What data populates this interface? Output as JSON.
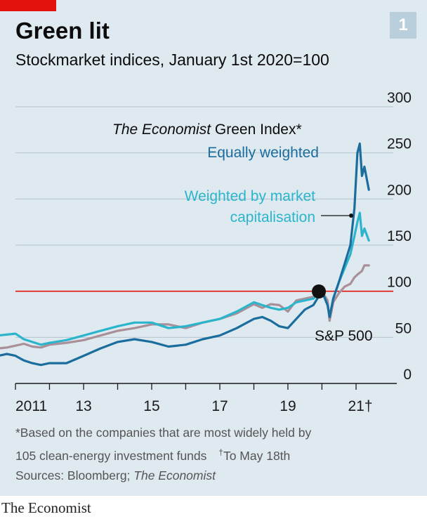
{
  "header": {
    "title": "Green lit",
    "subtitle": "Stockmarket indices, January 1st 2020=100",
    "chart_number": "1"
  },
  "colors": {
    "background": "#dfe9f0",
    "equally_weighted": "#1b6d9e",
    "market_cap": "#2bb5cc",
    "sp500": "#a98f98",
    "baseline": "#e3120b",
    "accent_tab": "#e3120b"
  },
  "chart_data": {
    "type": "line",
    "title": "Green lit",
    "subtitle": "Stockmarket indices, January 1st 2020=100",
    "ylim": [
      0,
      300
    ],
    "y_ticks": [
      0,
      50,
      100,
      150,
      200,
      250,
      300
    ],
    "y_ticks_position": "right",
    "x_ticks": [
      {
        "x": "2011-01-01",
        "label": "2011"
      },
      {
        "x": "2013-01-01",
        "label": "13"
      },
      {
        "x": "2015-01-01",
        "label": "15"
      },
      {
        "x": "2017-01-01",
        "label": "17"
      },
      {
        "x": "2019-01-01",
        "label": "19"
      },
      {
        "x": "2021-01-01",
        "label": "21†"
      }
    ],
    "baseline": 100,
    "index_label": "The Economist Green Index*",
    "series": [
      {
        "name": "Equally weighted",
        "color": "#1b6d9e",
        "x": [
          "2010-07-01",
          "2010-10-01",
          "2011-01-01",
          "2011-04-01",
          "2011-07-01",
          "2011-10-01",
          "2012-01-01",
          "2012-07-01",
          "2013-01-01",
          "2013-07-01",
          "2014-01-01",
          "2014-07-01",
          "2015-01-01",
          "2015-07-01",
          "2016-01-01",
          "2016-07-01",
          "2017-01-01",
          "2017-07-01",
          "2018-01-01",
          "2018-04-01",
          "2018-07-01",
          "2018-10-01",
          "2019-01-01",
          "2019-04-01",
          "2019-07-01",
          "2019-10-01",
          "2020-01-01",
          "2020-03-01",
          "2020-03-23",
          "2020-05-01",
          "2020-07-01",
          "2020-09-01",
          "2020-11-01",
          "2020-12-15",
          "2021-01-15",
          "2021-02-10",
          "2021-03-05",
          "2021-04-01",
          "2021-05-18"
        ],
        "values": [
          30,
          32,
          30,
          25,
          22,
          20,
          22,
          22,
          30,
          38,
          45,
          48,
          45,
          40,
          42,
          48,
          52,
          60,
          70,
          72,
          68,
          62,
          60,
          70,
          80,
          85,
          100,
          85,
          72,
          92,
          110,
          130,
          150,
          190,
          250,
          260,
          225,
          235,
          210
        ]
      },
      {
        "name": "Weighted by market capitalisation",
        "color": "#2bb5cc",
        "x": [
          "2010-07-01",
          "2010-10-01",
          "2011-01-01",
          "2011-04-01",
          "2011-07-01",
          "2011-10-01",
          "2012-01-01",
          "2012-07-01",
          "2013-01-01",
          "2013-07-01",
          "2014-01-01",
          "2014-07-01",
          "2015-01-01",
          "2015-07-01",
          "2016-01-01",
          "2016-07-01",
          "2017-01-01",
          "2017-07-01",
          "2018-01-01",
          "2018-04-01",
          "2018-07-01",
          "2018-10-01",
          "2019-01-01",
          "2019-04-01",
          "2019-07-01",
          "2019-10-01",
          "2020-01-01",
          "2020-03-01",
          "2020-03-23",
          "2020-05-01",
          "2020-07-01",
          "2020-09-01",
          "2020-11-01",
          "2020-12-15",
          "2021-01-15",
          "2021-02-10",
          "2021-03-05",
          "2021-04-01",
          "2021-05-18"
        ],
        "values": [
          52,
          53,
          54,
          48,
          45,
          42,
          44,
          47,
          52,
          57,
          62,
          66,
          66,
          60,
          62,
          66,
          70,
          78,
          88,
          85,
          82,
          80,
          82,
          88,
          90,
          92,
          100,
          85,
          72,
          92,
          110,
          125,
          140,
          160,
          175,
          185,
          160,
          168,
          155
        ]
      },
      {
        "name": "S&P 500",
        "color": "#a98f98",
        "x": [
          "2010-07-01",
          "2010-10-01",
          "2011-01-01",
          "2011-04-01",
          "2011-07-01",
          "2011-10-01",
          "2012-01-01",
          "2012-07-01",
          "2013-01-01",
          "2013-07-01",
          "2014-01-01",
          "2014-07-01",
          "2015-01-01",
          "2015-07-01",
          "2016-01-01",
          "2016-07-01",
          "2017-01-01",
          "2017-07-01",
          "2018-01-01",
          "2018-04-01",
          "2018-07-01",
          "2018-10-01",
          "2019-01-01",
          "2019-04-01",
          "2019-07-01",
          "2019-10-01",
          "2020-01-01",
          "2020-03-01",
          "2020-03-23",
          "2020-05-01",
          "2020-07-01",
          "2020-09-01",
          "2020-11-01",
          "2020-12-15",
          "2021-01-15",
          "2021-02-10",
          "2021-03-05",
          "2021-04-01",
          "2021-05-18"
        ],
        "values": [
          38,
          39,
          41,
          43,
          40,
          39,
          42,
          44,
          47,
          52,
          57,
          60,
          64,
          64,
          60,
          66,
          70,
          76,
          86,
          82,
          86,
          85,
          78,
          90,
          92,
          94,
          100,
          90,
          68,
          88,
          98,
          105,
          108,
          115,
          118,
          120,
          122,
          128,
          128
        ]
      }
    ],
    "annotations": [
      "S&P 500"
    ]
  },
  "footnote": {
    "line1": "*Based on the companies that are most widely held by",
    "line2_a": "105 clean-energy investment funds",
    "line2_b": "To May 18th",
    "dagger": "†",
    "sources_prefix": "Sources: Bloomberg; ",
    "sources_italic": "The Economist"
  },
  "masthead": "The Economist"
}
